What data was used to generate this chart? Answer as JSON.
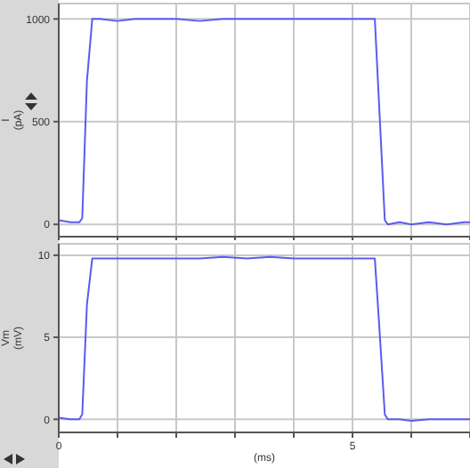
{
  "chart_data": [
    {
      "type": "line",
      "ylabel": "I (pA)",
      "x": [
        0,
        0.2,
        0.35,
        0.4,
        0.48,
        0.57,
        0.7,
        1,
        1.3,
        1.6,
        2,
        2.4,
        2.8,
        3.2,
        3.6,
        4,
        4.4,
        4.8,
        5.2,
        5.38,
        5.45,
        5.55,
        5.6,
        5.8,
        6,
        6.3,
        6.6,
        6.9,
        7
      ],
      "series": [
        {
          "color": "#5a5cf0",
          "values": [
            20,
            10,
            10,
            30,
            700,
            1000,
            1000,
            990,
            1000,
            1000,
            1000,
            990,
            1000,
            1000,
            1000,
            1000,
            1000,
            1000,
            1000,
            1000,
            600,
            20,
            0,
            10,
            0,
            10,
            0,
            10,
            10
          ]
        }
      ],
      "xlim": [
        0,
        7
      ],
      "xticks": [
        0,
        1,
        2,
        3,
        4,
        5,
        6,
        7
      ],
      "ylim": [
        -60,
        1075
      ],
      "yticks": [
        0,
        500,
        1000
      ],
      "grid": true,
      "tick_labels": "y",
      "line_style": "solid",
      "marker": "none"
    },
    {
      "type": "line",
      "xlabel": "(ms)",
      "ylabel": "Vm (mV)",
      "x": [
        0,
        0.2,
        0.35,
        0.4,
        0.48,
        0.57,
        0.7,
        1,
        1.3,
        1.6,
        2,
        2.4,
        2.8,
        3.2,
        3.6,
        4,
        4.4,
        4.8,
        5.2,
        5.38,
        5.45,
        5.55,
        5.6,
        5.8,
        6,
        6.3,
        6.6,
        6.9,
        7
      ],
      "series": [
        {
          "color": "#5a5cf0",
          "values": [
            0.1,
            0,
            0,
            0.3,
            7,
            9.8,
            9.8,
            9.8,
            9.8,
            9.8,
            9.8,
            9.8,
            9.9,
            9.8,
            9.9,
            9.8,
            9.8,
            9.8,
            9.8,
            9.8,
            6,
            0.3,
            0,
            0,
            -0.1,
            0,
            0,
            0,
            0
          ]
        }
      ],
      "xlim": [
        0,
        7
      ],
      "xticks": [
        0,
        {
          "value": 1,
          "label": null
        },
        {
          "value": 2,
          "label": null
        },
        {
          "value": 3,
          "label": null
        },
        {
          "value": 4,
          "label": null
        },
        5,
        {
          "value": 6,
          "label": null
        },
        {
          "value": 7,
          "label": null
        }
      ],
      "ylim": [
        -0.8,
        10.7
      ],
      "yticks": [
        0,
        5,
        10
      ],
      "grid": true,
      "line_style": "solid",
      "marker": "none"
    }
  ]
}
